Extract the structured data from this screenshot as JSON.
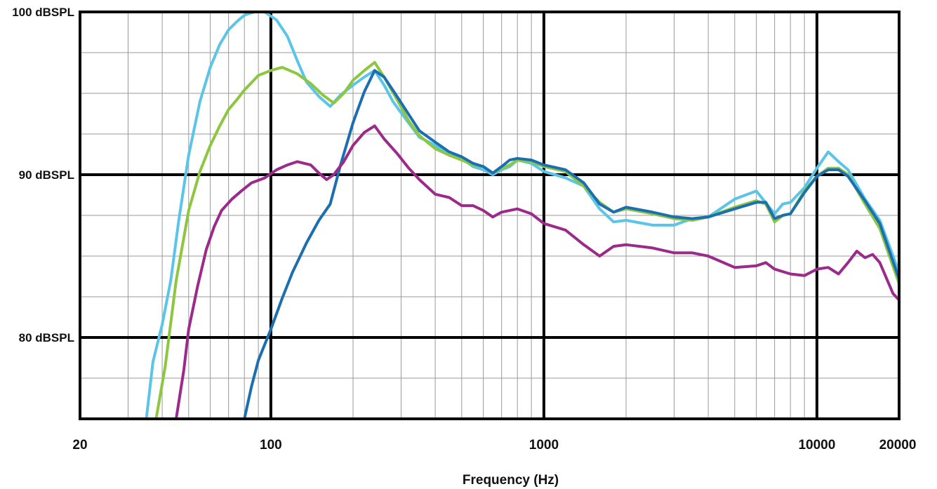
{
  "chart_data": {
    "type": "line",
    "xlabel": "Frequency (Hz)",
    "ylabel": "",
    "x_scale": "log",
    "xlim": [
      20,
      20000
    ],
    "ylim": [
      75,
      100
    ],
    "x_ticks": [
      {
        "value": 20,
        "label": "20"
      },
      {
        "value": 100,
        "label": "100"
      },
      {
        "value": 1000,
        "label": "1000"
      },
      {
        "value": 10000,
        "label": "10000"
      },
      {
        "value": 20000,
        "label": "20000"
      }
    ],
    "y_ticks": [
      {
        "value": 80,
        "label": "80 dBSPL"
      },
      {
        "value": 90,
        "label": "90 dBSPL"
      },
      {
        "value": 100,
        "label": "100 dBSPL"
      }
    ],
    "grid": true,
    "legend": "none",
    "series": [
      {
        "color": "#5bc5e8",
        "points": [
          [
            35,
            75
          ],
          [
            37,
            78.5
          ],
          [
            40,
            80.8
          ],
          [
            43,
            83.5
          ],
          [
            46,
            87.2
          ],
          [
            50,
            91.2
          ],
          [
            55,
            94.5
          ],
          [
            60,
            96.6
          ],
          [
            65,
            98
          ],
          [
            70,
            98.9
          ],
          [
            75,
            99.4
          ],
          [
            80,
            99.8
          ],
          [
            87,
            100
          ],
          [
            95,
            100
          ],
          [
            105,
            99.5
          ],
          [
            115,
            98.5
          ],
          [
            125,
            97
          ],
          [
            135,
            95.7
          ],
          [
            150,
            94.8
          ],
          [
            165,
            94.2
          ],
          [
            180,
            94.9
          ],
          [
            200,
            95.5
          ],
          [
            220,
            96
          ],
          [
            240,
            96.4
          ],
          [
            260,
            95.5
          ],
          [
            280,
            94.5
          ],
          [
            300,
            93.8
          ],
          [
            350,
            92.3
          ],
          [
            400,
            91.8
          ],
          [
            450,
            91.2
          ],
          [
            500,
            91
          ],
          [
            550,
            90.5
          ],
          [
            600,
            90.3
          ],
          [
            650,
            90
          ],
          [
            700,
            90.3
          ],
          [
            750,
            90.5
          ],
          [
            800,
            90.9
          ],
          [
            900,
            90.7
          ],
          [
            1000,
            90.2
          ],
          [
            1200,
            89.8
          ],
          [
            1400,
            89.3
          ],
          [
            1600,
            87.9
          ],
          [
            1800,
            87.1
          ],
          [
            2000,
            87.2
          ],
          [
            2500,
            86.9
          ],
          [
            3000,
            86.9
          ],
          [
            3500,
            87.3
          ],
          [
            4000,
            87.4
          ],
          [
            5000,
            88.5
          ],
          [
            6000,
            89
          ],
          [
            7000,
            87.6
          ],
          [
            7500,
            88.2
          ],
          [
            8000,
            88.3
          ],
          [
            9000,
            89.2
          ],
          [
            10000,
            90.4
          ],
          [
            11000,
            91.4
          ],
          [
            12000,
            90.8
          ],
          [
            13000,
            90.3
          ],
          [
            15000,
            88.5
          ],
          [
            17000,
            87.2
          ],
          [
            20000,
            84
          ]
        ]
      },
      {
        "color": "#8dc63f",
        "points": [
          [
            38,
            75
          ],
          [
            41,
            78.2
          ],
          [
            45,
            83.5
          ],
          [
            50,
            87.8
          ],
          [
            55,
            90.2
          ],
          [
            60,
            91.8
          ],
          [
            65,
            93
          ],
          [
            70,
            94
          ],
          [
            75,
            94.6
          ],
          [
            80,
            95.2
          ],
          [
            90,
            96.1
          ],
          [
            100,
            96.4
          ],
          [
            110,
            96.6
          ],
          [
            125,
            96.2
          ],
          [
            140,
            95.6
          ],
          [
            155,
            94.9
          ],
          [
            170,
            94.4
          ],
          [
            185,
            95
          ],
          [
            200,
            95.8
          ],
          [
            220,
            96.4
          ],
          [
            240,
            96.9
          ],
          [
            260,
            96
          ],
          [
            290,
            94.6
          ],
          [
            320,
            93.3
          ],
          [
            350,
            92.4
          ],
          [
            400,
            91.6
          ],
          [
            450,
            91.2
          ],
          [
            500,
            90.9
          ],
          [
            550,
            90.6
          ],
          [
            600,
            90.5
          ],
          [
            650,
            90.1
          ],
          [
            700,
            90.4
          ],
          [
            750,
            90.6
          ],
          [
            800,
            90.9
          ],
          [
            900,
            90.8
          ],
          [
            1000,
            90.5
          ],
          [
            1200,
            90.2
          ],
          [
            1400,
            89.3
          ],
          [
            1600,
            88.3
          ],
          [
            1800,
            87.7
          ],
          [
            2000,
            87.9
          ],
          [
            2500,
            87.6
          ],
          [
            3000,
            87.3
          ],
          [
            3500,
            87.2
          ],
          [
            4000,
            87.4
          ],
          [
            5000,
            88
          ],
          [
            6000,
            88.4
          ],
          [
            6500,
            88.2
          ],
          [
            7000,
            87.1
          ],
          [
            7500,
            87.5
          ],
          [
            8000,
            87.6
          ],
          [
            9000,
            89
          ],
          [
            10000,
            89.9
          ],
          [
            11000,
            90.4
          ],
          [
            12000,
            90.4
          ],
          [
            13000,
            90
          ],
          [
            15000,
            88.2
          ],
          [
            17000,
            86.7
          ],
          [
            20000,
            83.3
          ]
        ]
      },
      {
        "color": "#1b6fb0",
        "points": [
          [
            80,
            75
          ],
          [
            85,
            77
          ],
          [
            90,
            78.6
          ],
          [
            100,
            80.5
          ],
          [
            110,
            82.4
          ],
          [
            120,
            84
          ],
          [
            135,
            85.8
          ],
          [
            150,
            87.2
          ],
          [
            165,
            88.2
          ],
          [
            180,
            90.6
          ],
          [
            200,
            93.2
          ],
          [
            220,
            95.1
          ],
          [
            240,
            96.4
          ],
          [
            260,
            96
          ],
          [
            290,
            94.8
          ],
          [
            320,
            93.7
          ],
          [
            350,
            92.7
          ],
          [
            400,
            92
          ],
          [
            450,
            91.4
          ],
          [
            500,
            91.1
          ],
          [
            550,
            90.7
          ],
          [
            600,
            90.5
          ],
          [
            650,
            90.1
          ],
          [
            700,
            90.5
          ],
          [
            750,
            90.9
          ],
          [
            800,
            91
          ],
          [
            900,
            90.9
          ],
          [
            1000,
            90.6
          ],
          [
            1200,
            90.3
          ],
          [
            1400,
            89.5
          ],
          [
            1600,
            88.2
          ],
          [
            1800,
            87.7
          ],
          [
            2000,
            88
          ],
          [
            2500,
            87.7
          ],
          [
            3000,
            87.4
          ],
          [
            3500,
            87.3
          ],
          [
            4000,
            87.4
          ],
          [
            5000,
            87.9
          ],
          [
            6000,
            88.3
          ],
          [
            6500,
            88.3
          ],
          [
            7000,
            87.3
          ],
          [
            7500,
            87.5
          ],
          [
            8000,
            87.6
          ],
          [
            9000,
            88.9
          ],
          [
            10000,
            89.9
          ],
          [
            11000,
            90.3
          ],
          [
            12000,
            90.3
          ],
          [
            13000,
            89.9
          ],
          [
            15000,
            88.4
          ],
          [
            17000,
            87
          ],
          [
            20000,
            83.6
          ]
        ]
      },
      {
        "color": "#9b2a8a",
        "points": [
          [
            45,
            75
          ],
          [
            48,
            78
          ],
          [
            50,
            80.5
          ],
          [
            54,
            83.2
          ],
          [
            58,
            85.4
          ],
          [
            62,
            86.8
          ],
          [
            66,
            87.8
          ],
          [
            72,
            88.5
          ],
          [
            78,
            89
          ],
          [
            85,
            89.5
          ],
          [
            95,
            89.8
          ],
          [
            105,
            90.3
          ],
          [
            115,
            90.6
          ],
          [
            125,
            90.8
          ],
          [
            140,
            90.6
          ],
          [
            150,
            90.1
          ],
          [
            160,
            89.7
          ],
          [
            170,
            90
          ],
          [
            185,
            90.8
          ],
          [
            200,
            91.8
          ],
          [
            220,
            92.6
          ],
          [
            240,
            93
          ],
          [
            260,
            92.2
          ],
          [
            290,
            91.3
          ],
          [
            320,
            90.4
          ],
          [
            350,
            89.7
          ],
          [
            400,
            88.8
          ],
          [
            450,
            88.6
          ],
          [
            500,
            88.1
          ],
          [
            550,
            88.1
          ],
          [
            600,
            87.8
          ],
          [
            650,
            87.4
          ],
          [
            700,
            87.7
          ],
          [
            800,
            87.9
          ],
          [
            900,
            87.6
          ],
          [
            1000,
            87
          ],
          [
            1200,
            86.6
          ],
          [
            1400,
            85.7
          ],
          [
            1600,
            85
          ],
          [
            1800,
            85.6
          ],
          [
            2000,
            85.7
          ],
          [
            2500,
            85.5
          ],
          [
            3000,
            85.2
          ],
          [
            3500,
            85.2
          ],
          [
            4000,
            85
          ],
          [
            5000,
            84.3
          ],
          [
            6000,
            84.4
          ],
          [
            6500,
            84.6
          ],
          [
            7000,
            84.2
          ],
          [
            8000,
            83.9
          ],
          [
            9000,
            83.8
          ],
          [
            10000,
            84.2
          ],
          [
            11000,
            84.3
          ],
          [
            12000,
            83.9
          ],
          [
            13000,
            84.6
          ],
          [
            14000,
            85.3
          ],
          [
            15000,
            84.9
          ],
          [
            16000,
            85.1
          ],
          [
            17000,
            84.6
          ],
          [
            19000,
            82.7
          ],
          [
            20000,
            82.3
          ]
        ]
      }
    ]
  }
}
